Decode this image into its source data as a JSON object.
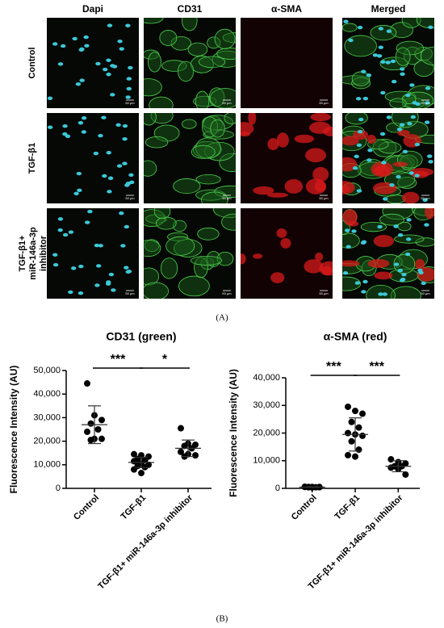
{
  "figure": {
    "columns": [
      "Dapi",
      "CD31",
      "α-SMA",
      "Merged"
    ],
    "rows": [
      [
        "Control"
      ],
      [
        "TGF-β1"
      ],
      [
        "TGF-β1+",
        "miR-146a-3p",
        "inhibitor"
      ]
    ],
    "scale_bar": "50 μm",
    "panel_a": "(A)",
    "panel_b": "(B)"
  },
  "chart_data": [
    {
      "type": "strip",
      "title": "CD31 (green)",
      "y_label": "Fluorescence Intensity (AU)",
      "categories": [
        "Control",
        "TGF-β1",
        "TGF-β1+ miR-146a-3p inhibitor"
      ],
      "values": [
        [
          44500,
          31000,
          29000,
          27500,
          25000,
          24000,
          21000,
          21000,
          20500
        ],
        [
          14500,
          14000,
          13500,
          12500,
          12000,
          11500,
          10500,
          10000,
          9500,
          9000,
          8000,
          6500
        ],
        [
          25500,
          19000,
          18500,
          18000,
          17000,
          15500,
          14500,
          14000,
          13500
        ]
      ],
      "mean": [
        27000,
        11000,
        17000
      ],
      "sd": [
        8000,
        2200,
        3500
      ],
      "color": "#000000",
      "ylim": [
        0,
        50000
      ],
      "yticks": [
        0,
        {
          "value": 10000,
          "label": "10,000"
        },
        {
          "value": 20000,
          "label": "20,000"
        },
        {
          "value": 30000,
          "label": "30,000"
        },
        {
          "value": 40000,
          "label": "40,000"
        },
        {
          "value": 50000,
          "label": "50,000"
        }
      ],
      "annotations": [
        "***",
        "*"
      ]
    },
    {
      "type": "strip",
      "title": "α-SMA (red)",
      "y_label": "Fluorescence Intensity (AU)",
      "categories": [
        "Control",
        "TGF-β1",
        "TGF-β1+ miR-146a-3p inhibitor"
      ],
      "values": [
        [
          600,
          500,
          500,
          400,
          400,
          500,
          300,
          400,
          500
        ],
        [
          29500,
          28000,
          27000,
          24000,
          22000,
          20000,
          19500,
          19000,
          17000,
          14000,
          12000,
          11500
        ],
        [
          10500,
          9500,
          9000,
          8000,
          8000,
          7500,
          7000,
          5000
        ]
      ],
      "mean": [
        450,
        19500,
        8000
      ],
      "sd": [
        100,
        6000,
        2000
      ],
      "color": "#000000",
      "ylim": [
        0,
        40000
      ],
      "yticks": [
        0,
        {
          "value": 10000,
          "label": "10,000"
        },
        {
          "value": 20000,
          "label": "20,000"
        },
        {
          "value": 30000,
          "label": "30,000"
        },
        {
          "value": 40000,
          "label": "40,000"
        }
      ],
      "annotations": [
        "***",
        "***"
      ]
    }
  ]
}
